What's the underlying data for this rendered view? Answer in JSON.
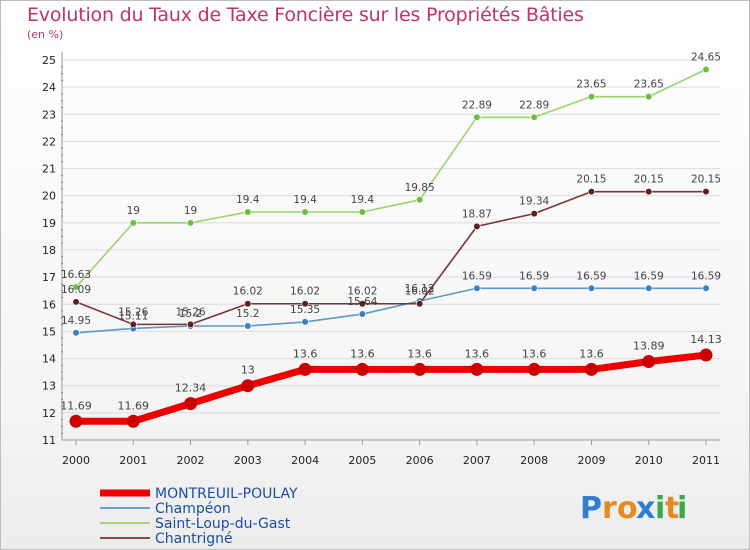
{
  "title": "Evolution du Taux de Taxe Foncière sur les Propriétés Bâties",
  "unit": "(en %)",
  "logo": {
    "letters": [
      "P",
      "r",
      "o",
      "x",
      "i",
      "t",
      "i"
    ],
    "colors": [
      "#2f7fd0",
      "#e58a1f",
      "#e58a1f",
      "#2f7fd0",
      "#3aa84a",
      "#e58a1f",
      "#3aa84a"
    ]
  },
  "chart_data": {
    "type": "line",
    "title": "Evolution du Taux de Taxe Foncière sur les Propriétés Bâties",
    "ylabel": "(en %)",
    "xlabel": "",
    "x": [
      "2000",
      "2001",
      "2002",
      "2003",
      "2004",
      "2005",
      "2006",
      "2007",
      "2008",
      "2009",
      "2010",
      "2011"
    ],
    "ylim": [
      11,
      25
    ],
    "yticks": [
      "11",
      "12",
      "13",
      "14",
      "15",
      "16",
      "17",
      "18",
      "19",
      "20",
      "21",
      "22",
      "23",
      "24",
      "25"
    ],
    "grid": "horizontal",
    "legend_position": "bottom-left",
    "series": [
      {
        "name": "MONTREUIL-POULAY",
        "color": "#ee0000",
        "marker": "#cc0000",
        "values": [
          11.69,
          11.69,
          12.34,
          13,
          13.6,
          13.6,
          13.6,
          13.6,
          13.6,
          13.6,
          13.89,
          14.13
        ],
        "labels": [
          "11.69",
          "11.69",
          "12.34",
          "13",
          "13.6",
          "13.6",
          "13.6",
          "13.6",
          "13.6",
          "13.6",
          "13.89",
          "14.13"
        ]
      },
      {
        "name": "Champéon",
        "color": "#5a97cc",
        "marker": "#3b7fc2",
        "values": [
          14.95,
          15.11,
          15.2,
          15.2,
          15.35,
          15.64,
          16.12,
          16.59,
          16.59,
          16.59,
          16.59,
          16.59
        ],
        "labels": [
          "14.95",
          "15.11",
          "15.2",
          "15.2",
          "15.35",
          "15.64",
          "16.12",
          "16.59",
          "16.59",
          "16.59",
          "16.59",
          "16.59"
        ]
      },
      {
        "name": "Saint-Loup-du-Gast",
        "color": "#9ad46a",
        "marker": "#6cbf3e",
        "values": [
          16.63,
          19,
          19,
          19.4,
          19.4,
          19.4,
          19.85,
          22.89,
          22.89,
          23.65,
          23.65,
          24.65
        ],
        "labels": [
          "16.63",
          "19",
          "19",
          "19.4",
          "19.4",
          "19.4",
          "19.85",
          "22.89",
          "22.89",
          "23.65",
          "23.65",
          "24.65"
        ]
      },
      {
        "name": "Chantrigné",
        "color": "#7a3434",
        "marker": "#5e1f1f",
        "values": [
          16.09,
          15.26,
          15.26,
          16.02,
          16.02,
          16.02,
          16.02,
          18.87,
          19.34,
          20.15,
          20.15,
          20.15
        ],
        "labels": [
          "16.09",
          "15.26",
          "15.26",
          "16.02",
          "16.02",
          "16.02",
          "16.02",
          "18.87",
          "19.34",
          "20.15",
          "20.15",
          "20.15"
        ]
      }
    ]
  }
}
